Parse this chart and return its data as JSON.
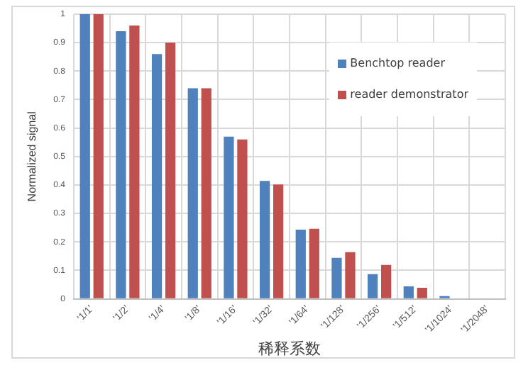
{
  "chart_data": {
    "type": "bar",
    "xlabel": "稀释系数",
    "ylabel": "Normalized signal",
    "categories": [
      "'1/1'",
      "'1/2'",
      "'1/4'",
      "'1/8'",
      "'1/16'",
      "'1/32'",
      "'1/64'",
      "'1/128'",
      "'1/256'",
      "'1/512'",
      "'1/1024'",
      "'1/2048'"
    ],
    "series": [
      {
        "name": "Benchtop reader",
        "color": "#4f81bd",
        "values": [
          1,
          0.94,
          0.86,
          0.74,
          0.57,
          0.414,
          0.243,
          0.144,
          0.087,
          0.044,
          0.01,
          0
        ]
      },
      {
        "name": "reader demonstrator",
        "color": "#c0504d",
        "values": [
          1,
          0.96,
          0.9,
          0.74,
          0.56,
          0.402,
          0.246,
          0.164,
          0.119,
          0.039,
          0,
          0
        ]
      }
    ],
    "ylim": [
      0,
      1
    ],
    "yticks": [
      0,
      0.1,
      0.2,
      0.3,
      0.4,
      0.5,
      0.6,
      0.7,
      0.8,
      0.9,
      1
    ],
    "grid": true,
    "legend": "top right"
  }
}
